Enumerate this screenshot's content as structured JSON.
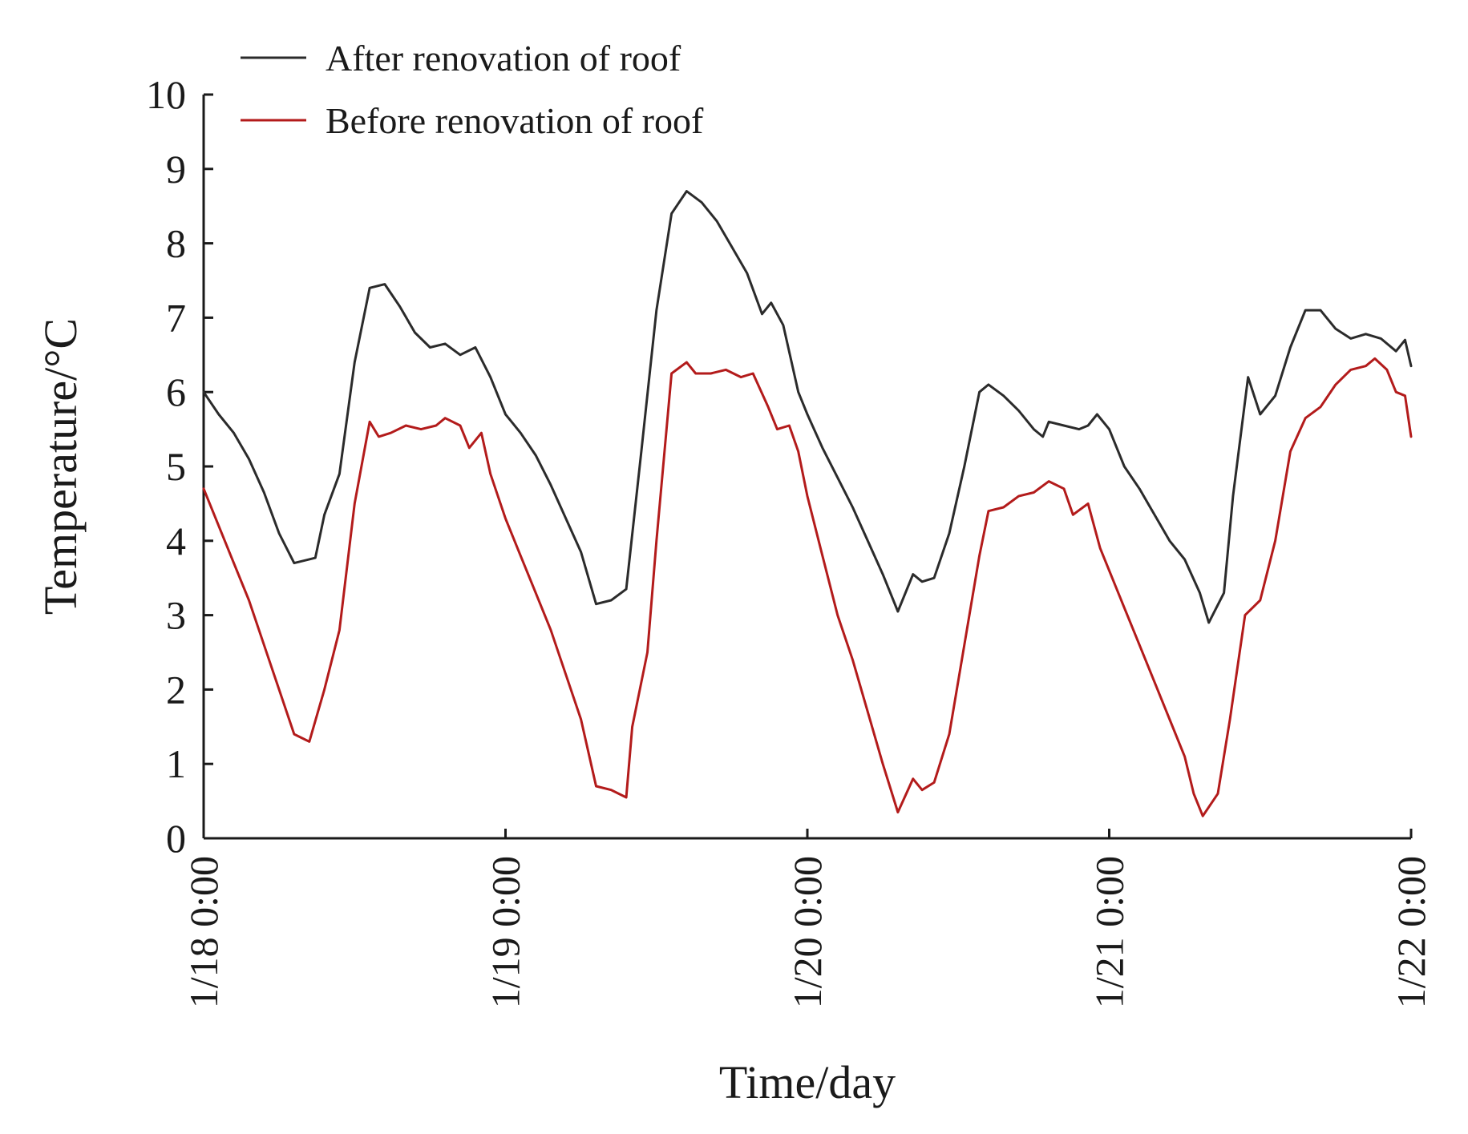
{
  "chart_data": {
    "type": "line",
    "title": "",
    "xlabel": "Time/day",
    "ylabel": "Temperature/°C",
    "ylim": [
      0,
      10
    ],
    "xlim": [
      0,
      4
    ],
    "x_ticks": [
      {
        "value": 0,
        "label": "1/18 0:00"
      },
      {
        "value": 1,
        "label": "1/19 0:00"
      },
      {
        "value": 2,
        "label": "1/20 0:00"
      },
      {
        "value": 3,
        "label": "1/21 0:00"
      },
      {
        "value": 4,
        "label": "1/22 0:00"
      }
    ],
    "y_ticks": [
      0,
      1,
      2,
      3,
      4,
      5,
      6,
      7,
      8,
      9,
      10
    ],
    "legend_position": "top-left",
    "grid": false,
    "series": [
      {
        "name": "After renovation of roof",
        "color": "#2b2b2b",
        "points": [
          [
            0.0,
            6.0
          ],
          [
            0.05,
            5.7
          ],
          [
            0.1,
            5.45
          ],
          [
            0.15,
            5.1
          ],
          [
            0.2,
            4.65
          ],
          [
            0.25,
            4.1
          ],
          [
            0.3,
            3.7
          ],
          [
            0.37,
            3.77
          ],
          [
            0.4,
            4.35
          ],
          [
            0.45,
            4.9
          ],
          [
            0.5,
            6.4
          ],
          [
            0.55,
            7.4
          ],
          [
            0.6,
            7.45
          ],
          [
            0.65,
            7.15
          ],
          [
            0.7,
            6.8
          ],
          [
            0.75,
            6.6
          ],
          [
            0.8,
            6.65
          ],
          [
            0.85,
            6.5
          ],
          [
            0.9,
            6.6
          ],
          [
            0.95,
            6.2
          ],
          [
            1.0,
            5.7
          ],
          [
            1.05,
            5.45
          ],
          [
            1.1,
            5.15
          ],
          [
            1.15,
            4.75
          ],
          [
            1.2,
            4.3
          ],
          [
            1.25,
            3.85
          ],
          [
            1.3,
            3.15
          ],
          [
            1.35,
            3.2
          ],
          [
            1.4,
            3.35
          ],
          [
            1.45,
            5.2
          ],
          [
            1.5,
            7.1
          ],
          [
            1.55,
            8.4
          ],
          [
            1.6,
            8.7
          ],
          [
            1.65,
            8.55
          ],
          [
            1.7,
            8.3
          ],
          [
            1.75,
            7.95
          ],
          [
            1.8,
            7.6
          ],
          [
            1.85,
            7.05
          ],
          [
            1.88,
            7.2
          ],
          [
            1.92,
            6.9
          ],
          [
            1.97,
            6.0
          ],
          [
            2.0,
            5.7
          ],
          [
            2.05,
            5.25
          ],
          [
            2.1,
            4.85
          ],
          [
            2.15,
            4.45
          ],
          [
            2.2,
            4.0
          ],
          [
            2.25,
            3.55
          ],
          [
            2.3,
            3.05
          ],
          [
            2.35,
            3.55
          ],
          [
            2.38,
            3.45
          ],
          [
            2.42,
            3.5
          ],
          [
            2.47,
            4.1
          ],
          [
            2.52,
            5.0
          ],
          [
            2.57,
            6.0
          ],
          [
            2.6,
            6.1
          ],
          [
            2.65,
            5.95
          ],
          [
            2.7,
            5.75
          ],
          [
            2.75,
            5.5
          ],
          [
            2.78,
            5.4
          ],
          [
            2.8,
            5.6
          ],
          [
            2.85,
            5.55
          ],
          [
            2.9,
            5.5
          ],
          [
            2.93,
            5.55
          ],
          [
            2.96,
            5.7
          ],
          [
            3.0,
            5.5
          ],
          [
            3.05,
            5.0
          ],
          [
            3.1,
            4.7
          ],
          [
            3.15,
            4.35
          ],
          [
            3.2,
            4.0
          ],
          [
            3.25,
            3.75
          ],
          [
            3.3,
            3.3
          ],
          [
            3.33,
            2.9
          ],
          [
            3.38,
            3.3
          ],
          [
            3.41,
            4.6
          ],
          [
            3.46,
            6.2
          ],
          [
            3.5,
            5.7
          ],
          [
            3.55,
            5.95
          ],
          [
            3.6,
            6.6
          ],
          [
            3.65,
            7.1
          ],
          [
            3.7,
            7.1
          ],
          [
            3.75,
            6.85
          ],
          [
            3.8,
            6.72
          ],
          [
            3.85,
            6.78
          ],
          [
            3.9,
            6.72
          ],
          [
            3.95,
            6.55
          ],
          [
            3.98,
            6.7
          ],
          [
            4.0,
            6.35
          ]
        ]
      },
      {
        "name": "Before renovation of roof",
        "color": "#b31b1b",
        "points": [
          [
            0.0,
            4.7
          ],
          [
            0.05,
            4.2
          ],
          [
            0.1,
            3.7
          ],
          [
            0.15,
            3.2
          ],
          [
            0.2,
            2.6
          ],
          [
            0.25,
            2.0
          ],
          [
            0.3,
            1.4
          ],
          [
            0.35,
            1.3
          ],
          [
            0.4,
            2.0
          ],
          [
            0.45,
            2.8
          ],
          [
            0.5,
            4.5
          ],
          [
            0.55,
            5.6
          ],
          [
            0.58,
            5.4
          ],
          [
            0.62,
            5.45
          ],
          [
            0.67,
            5.55
          ],
          [
            0.72,
            5.5
          ],
          [
            0.77,
            5.55
          ],
          [
            0.8,
            5.65
          ],
          [
            0.85,
            5.55
          ],
          [
            0.88,
            5.25
          ],
          [
            0.92,
            5.45
          ],
          [
            0.95,
            4.9
          ],
          [
            1.0,
            4.3
          ],
          [
            1.05,
            3.8
          ],
          [
            1.1,
            3.3
          ],
          [
            1.15,
            2.8
          ],
          [
            1.2,
            2.2
          ],
          [
            1.25,
            1.6
          ],
          [
            1.3,
            0.7
          ],
          [
            1.35,
            0.65
          ],
          [
            1.4,
            0.55
          ],
          [
            1.42,
            1.5
          ],
          [
            1.47,
            2.5
          ],
          [
            1.5,
            4.0
          ],
          [
            1.55,
            6.25
          ],
          [
            1.6,
            6.4
          ],
          [
            1.63,
            6.25
          ],
          [
            1.68,
            6.25
          ],
          [
            1.73,
            6.3
          ],
          [
            1.78,
            6.2
          ],
          [
            1.82,
            6.25
          ],
          [
            1.87,
            5.8
          ],
          [
            1.9,
            5.5
          ],
          [
            1.94,
            5.55
          ],
          [
            1.97,
            5.2
          ],
          [
            2.0,
            4.6
          ],
          [
            2.05,
            3.8
          ],
          [
            2.1,
            3.0
          ],
          [
            2.15,
            2.4
          ],
          [
            2.2,
            1.7
          ],
          [
            2.25,
            1.0
          ],
          [
            2.3,
            0.35
          ],
          [
            2.35,
            0.8
          ],
          [
            2.38,
            0.65
          ],
          [
            2.42,
            0.75
          ],
          [
            2.47,
            1.4
          ],
          [
            2.52,
            2.6
          ],
          [
            2.57,
            3.8
          ],
          [
            2.6,
            4.4
          ],
          [
            2.65,
            4.45
          ],
          [
            2.7,
            4.6
          ],
          [
            2.75,
            4.65
          ],
          [
            2.8,
            4.8
          ],
          [
            2.85,
            4.7
          ],
          [
            2.88,
            4.35
          ],
          [
            2.93,
            4.5
          ],
          [
            2.97,
            3.9
          ],
          [
            3.0,
            3.6
          ],
          [
            3.05,
            3.1
          ],
          [
            3.1,
            2.6
          ],
          [
            3.15,
            2.1
          ],
          [
            3.2,
            1.6
          ],
          [
            3.25,
            1.1
          ],
          [
            3.28,
            0.6
          ],
          [
            3.31,
            0.3
          ],
          [
            3.36,
            0.6
          ],
          [
            3.4,
            1.6
          ],
          [
            3.45,
            3.0
          ],
          [
            3.5,
            3.2
          ],
          [
            3.55,
            4.0
          ],
          [
            3.6,
            5.2
          ],
          [
            3.65,
            5.65
          ],
          [
            3.7,
            5.8
          ],
          [
            3.75,
            6.1
          ],
          [
            3.8,
            6.3
          ],
          [
            3.85,
            6.35
          ],
          [
            3.88,
            6.45
          ],
          [
            3.92,
            6.3
          ],
          [
            3.95,
            6.0
          ],
          [
            3.98,
            5.95
          ],
          [
            4.0,
            5.4
          ]
        ]
      }
    ]
  }
}
